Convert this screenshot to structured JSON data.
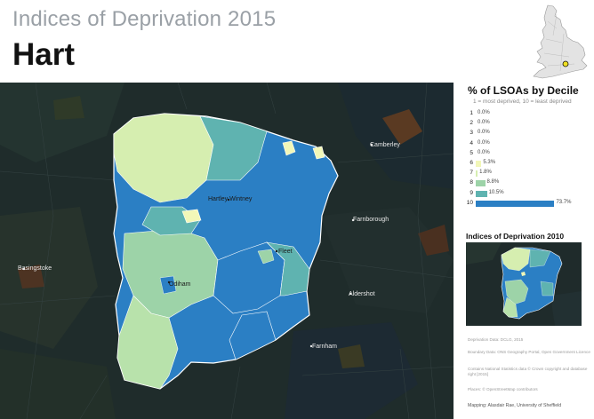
{
  "header": {
    "subtitle": "Indices of Deprivation 2015",
    "title": "Hart"
  },
  "map": {
    "places": {
      "camberley": "Camberley",
      "hartley_wintney": "Hartley Wintney",
      "farnborough": "Farnborough",
      "fleet": "Fleet",
      "basingstoke": "Basingstoke",
      "odiham": "Odiham",
      "aldershot": "Aldershot",
      "farnham": "Farnham"
    }
  },
  "panel": {
    "title": "% of LSOAs by Decile",
    "note": "1 = most deprived, 10 = least deprived",
    "deciles": [
      {
        "decile": "1",
        "value": 0.0,
        "label": "0.0%",
        "color": "#e8e8e8"
      },
      {
        "decile": "2",
        "value": 0.0,
        "label": "0.0%",
        "color": "#e8e8e8"
      },
      {
        "decile": "3",
        "value": 0.0,
        "label": "0.0%",
        "color": "#e8e8e8"
      },
      {
        "decile": "4",
        "value": 0.0,
        "label": "0.0%",
        "color": "#e8e8e8"
      },
      {
        "decile": "5",
        "value": 0.0,
        "label": "0.0%",
        "color": "#e8e8e8"
      },
      {
        "decile": "6",
        "value": 5.3,
        "label": "5.3%",
        "color": "#f2f7b8"
      },
      {
        "decile": "7",
        "value": 1.8,
        "label": "1.8%",
        "color": "#d6eeb0"
      },
      {
        "decile": "8",
        "value": 8.8,
        "label": "8.8%",
        "color": "#9dd3a8"
      },
      {
        "decile": "9",
        "value": 10.5,
        "label": "10.5%",
        "color": "#5fb3b0"
      },
      {
        "decile": "10",
        "value": 73.7,
        "label": "73.7%",
        "color": "#2b7fc4"
      }
    ],
    "id2010_title": "Indices of Deprivation 2010",
    "credits": [
      "Deprivation Data: DCLG, 2015",
      "Boundary Data: ONS Geography Portal, Open Government Licence",
      "Contains National Statistics data © Crown copyright and database right [2015]",
      "Places: © OpenStreetMap contributors"
    ],
    "mapping": "Mapping: Alasdair Rae, University of Sheffield"
  },
  "colors": {
    "decile_6": "#f2f7b8",
    "decile_7": "#d6eeb0",
    "decile_8": "#9dd3a8",
    "decile_9": "#5fb3b0",
    "decile_10": "#2b7fc4",
    "surrounding": "#1e2a2a",
    "highlight_marker": "#f0e020"
  }
}
